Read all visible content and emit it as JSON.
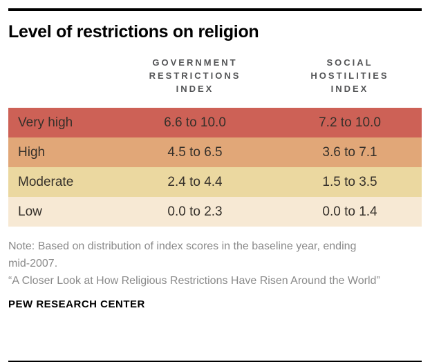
{
  "header": {
    "title": "Level of restrictions on religion"
  },
  "table": {
    "col_label_header": "",
    "col1_header": "GOVERNMENT\nRESTRICTIONS\nINDEX",
    "col2_header": "SOCIAL\nHOSTILITIES\nINDEX",
    "rows": [
      {
        "label": "Very high",
        "gri": "6.6 to 10.0",
        "shi": "7.2 to 10.0",
        "color": "#cd6156"
      },
      {
        "label": "High",
        "gri": "4.5 to 6.5",
        "shi": "3.6 to 7.1",
        "color": "#e1a778"
      },
      {
        "label": "Moderate",
        "gri": "2.4 to 4.4",
        "shi": "1.5 to 3.5",
        "color": "#ebd8a0"
      },
      {
        "label": "Low",
        "gri": "0.0 to 2.3",
        "shi": "0.0 to 1.4",
        "color": "#f7e9d4"
      }
    ]
  },
  "footer": {
    "note": "Note: Based on distribution of index scores in the baseline year, ending mid-2007.",
    "quote": "“A Closer Look at How Religious Restrictions Have Risen Around the World”",
    "source": "PEW RESEARCH CENTER"
  },
  "colors": {
    "rule": "#000000",
    "header_text": "#535456",
    "row_text": "#35302a",
    "note_text": "#8a8a8a"
  },
  "chart_data": {
    "type": "table",
    "title": "Level of restrictions on religion",
    "columns": [
      "Level",
      "Government Restrictions Index",
      "Social Hostilities Index"
    ],
    "rows": [
      [
        "Very high",
        "6.6 to 10.0",
        "7.2 to 10.0"
      ],
      [
        "High",
        "4.5 to 6.5",
        "3.6 to 7.1"
      ],
      [
        "Moderate",
        "2.4 to 4.4",
        "1.5 to 3.5"
      ],
      [
        "Low",
        "0.0 to 2.3",
        "0.0 to 1.4"
      ]
    ],
    "row_colors": [
      "#cd6156",
      "#e1a778",
      "#ebd8a0",
      "#f7e9d4"
    ],
    "note": "Note: Based on distribution of index scores in the baseline year, ending mid-2007.",
    "source_line": "“A Closer Look at How Religious Restrictions Have Risen Around the World”",
    "branding": "PEW RESEARCH CENTER",
    "legend_position": "none",
    "grid": false
  }
}
